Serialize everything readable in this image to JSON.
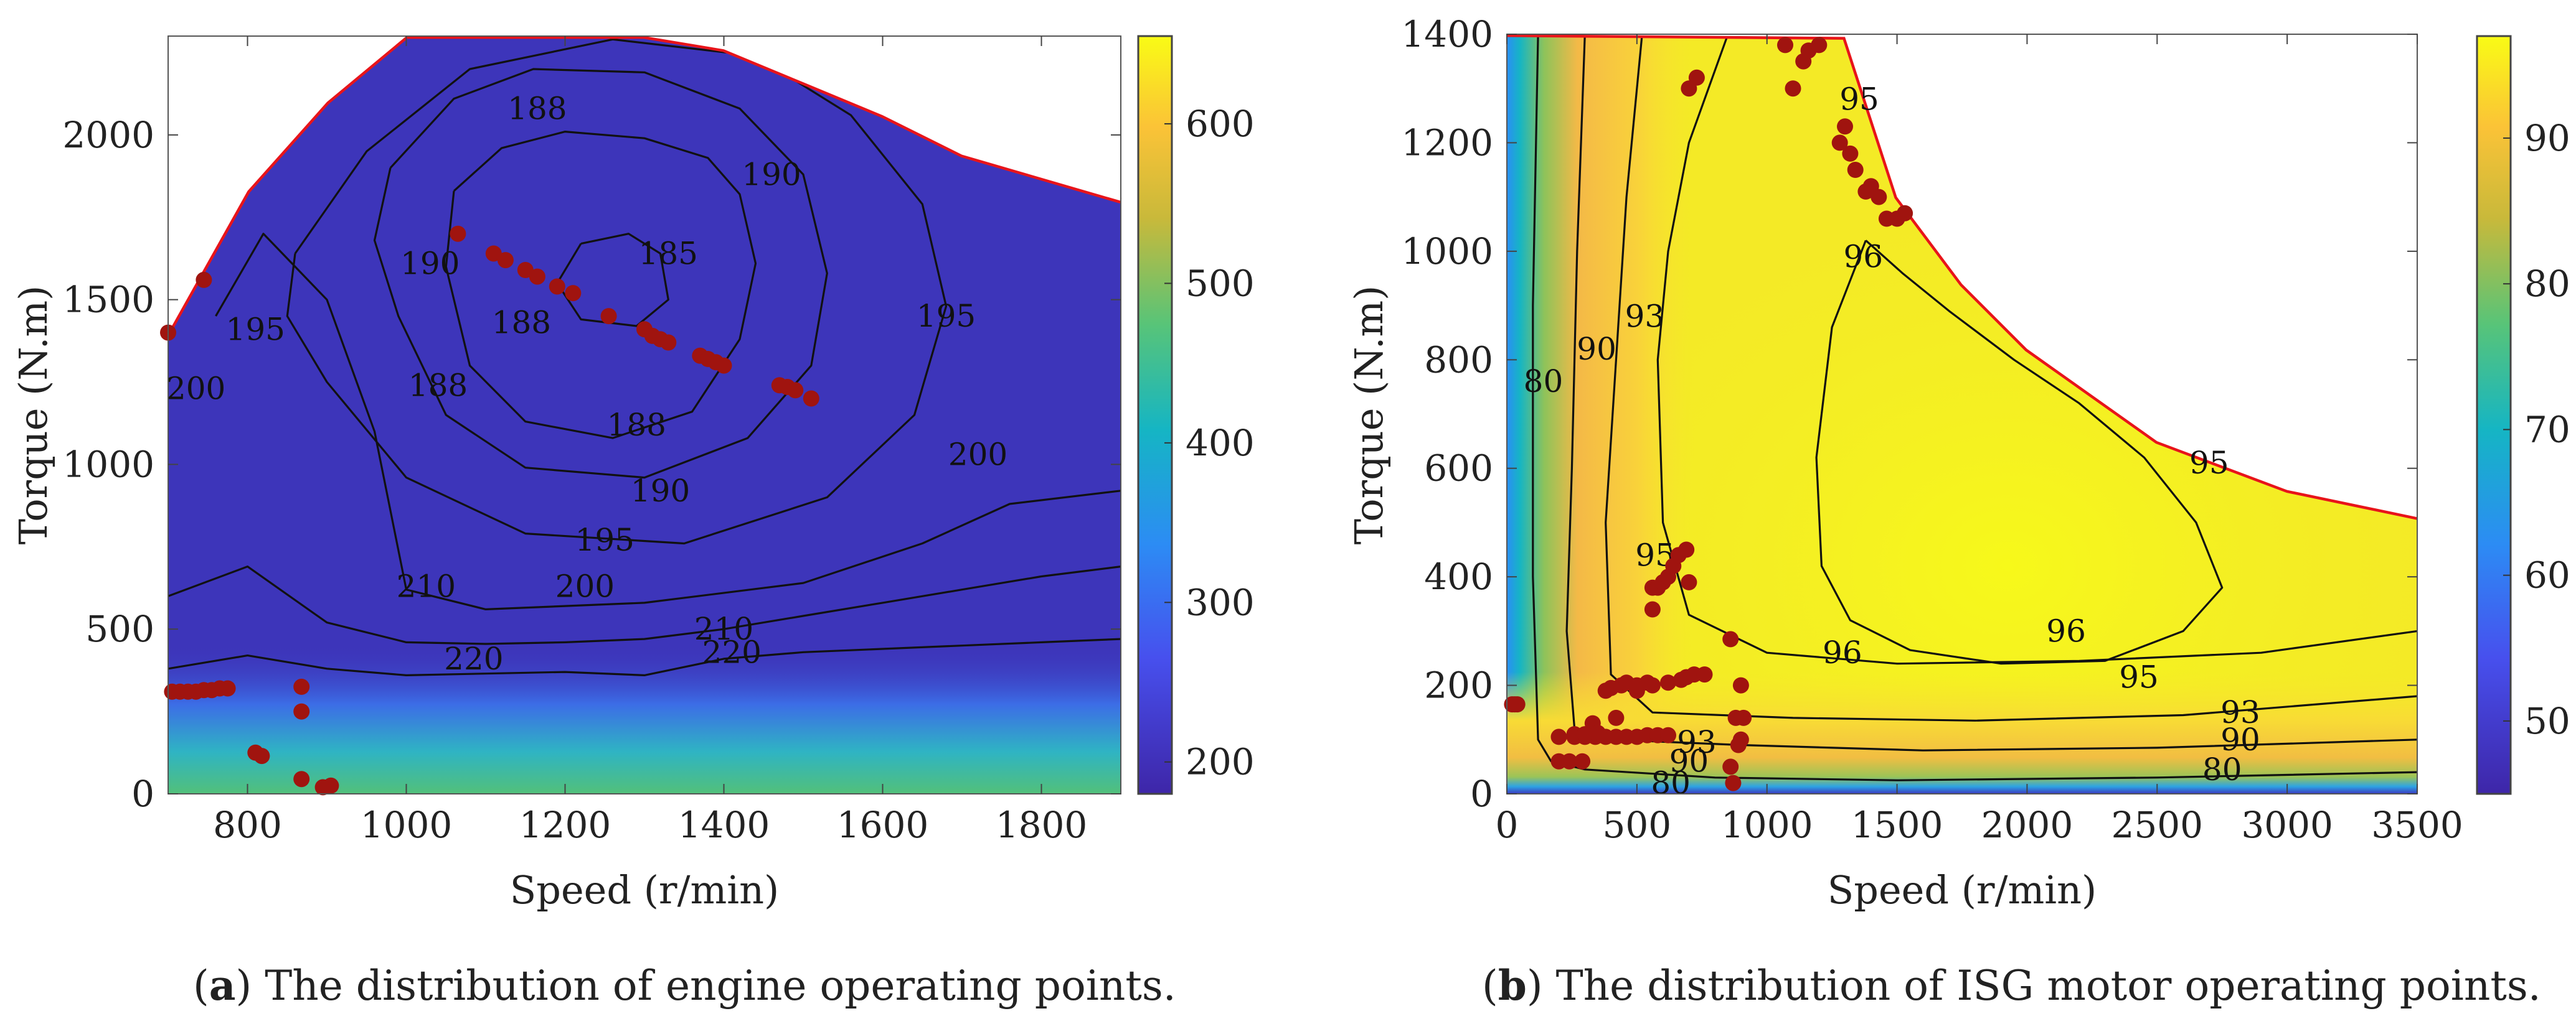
{
  "chart_data": [
    {
      "type": "heatmap",
      "subtype": "engine BSFC contour map with operating points",
      "xlabel": "Speed (r/min)",
      "ylabel": "Torque (N.m)",
      "xlim": [
        700,
        1900
      ],
      "ylim": [
        0,
        2300
      ],
      "xticks": [
        800,
        1000,
        1200,
        1400,
        1600,
        1800
      ],
      "yticks": [
        0,
        500,
        1000,
        1500,
        2000
      ],
      "colorbar": {
        "range": [
          180,
          655
        ],
        "ticks": [
          200,
          300,
          400,
          500,
          600
        ],
        "colormap": "parula"
      },
      "boundary": {
        "color": "#e8141a",
        "x": [
          700,
          800,
          900,
          1000,
          1300,
          1400,
          1600,
          1700,
          1900
        ],
        "y": [
          1400,
          1830,
          2100,
          2300,
          2300,
          2260,
          2060,
          1940,
          1800
        ]
      },
      "contours": [
        {
          "label": "185",
          "x": [
            1220,
            1280,
            1320,
            1330,
            1290,
            1220,
            1190,
            1220
          ],
          "y": [
            1670,
            1700,
            1640,
            1500,
            1420,
            1440,
            1550,
            1670
          ]
        },
        {
          "label": "188",
          "x": [
            1060,
            1120,
            1200,
            1300,
            1380,
            1420,
            1440,
            1420,
            1360,
            1260,
            1150,
            1080,
            1050,
            1060
          ],
          "y": [
            1830,
            1960,
            2010,
            1990,
            1930,
            1820,
            1610,
            1380,
            1160,
            1080,
            1130,
            1300,
            1600,
            1830
          ]
        },
        {
          "label": "190",
          "x": [
            980,
            1060,
            1160,
            1300,
            1420,
            1500,
            1530,
            1510,
            1430,
            1300,
            1150,
            1050,
            990,
            960,
            980
          ],
          "y": [
            1900,
            2110,
            2200,
            2190,
            2080,
            1880,
            1580,
            1300,
            1080,
            960,
            990,
            1150,
            1450,
            1680,
            1900
          ]
        },
        {
          "label": "195",
          "x": [
            860,
            950,
            1080,
            1260,
            1440,
            1560,
            1650,
            1680,
            1640,
            1530,
            1350,
            1150,
            1000,
            900,
            850,
            860
          ],
          "y": [
            1640,
            1950,
            2200,
            2290,
            2240,
            2060,
            1790,
            1480,
            1150,
            900,
            760,
            790,
            960,
            1250,
            1450,
            1640
          ]
        },
        {
          "label": "200",
          "x": [
            760,
            820,
            900,
            960,
            1000,
            1100,
            1300,
            1500,
            1650,
            1760,
            1900
          ],
          "y": [
            1450,
            1700,
            1500,
            1100,
            620,
            560,
            580,
            640,
            760,
            880,
            920
          ]
        },
        {
          "label": "210",
          "x": [
            700,
            800,
            900,
            1000,
            1100,
            1200,
            1300,
            1400,
            1500,
            1600,
            1700,
            1800,
            1900
          ],
          "y": [
            600,
            690,
            520,
            460,
            455,
            460,
            470,
            500,
            540,
            580,
            620,
            660,
            690
          ]
        },
        {
          "label": "220",
          "x": [
            700,
            800,
            900,
            1000,
            1100,
            1200,
            1300,
            1400,
            1500,
            1600,
            1700,
            1800,
            1900
          ],
          "y": [
            380,
            420,
            380,
            360,
            365,
            370,
            360,
            410,
            430,
            440,
            450,
            460,
            470
          ]
        }
      ],
      "contour_labels": [
        {
          "text": "188",
          "x": 1165,
          "y": 2080
        },
        {
          "text": "190",
          "x": 1460,
          "y": 1880
        },
        {
          "text": "185",
          "x": 1330,
          "y": 1640
        },
        {
          "text": "188",
          "x": 1145,
          "y": 1430
        },
        {
          "text": "188",
          "x": 1290,
          "y": 1120
        },
        {
          "text": "190",
          "x": 1320,
          "y": 920
        },
        {
          "text": "195",
          "x": 1250,
          "y": 770
        },
        {
          "text": "200",
          "x": 1225,
          "y": 630
        },
        {
          "text": "190",
          "x": 1030,
          "y": 1610
        },
        {
          "text": "188",
          "x": 1040,
          "y": 1240
        },
        {
          "text": "195",
          "x": 810,
          "y": 1410
        },
        {
          "text": "200",
          "x": 735,
          "y": 1230
        },
        {
          "text": "195",
          "x": 1680,
          "y": 1450
        },
        {
          "text": "200",
          "x": 1720,
          "y": 1030
        },
        {
          "text": "210",
          "x": 1025,
          "y": 630
        },
        {
          "text": "220",
          "x": 1085,
          "y": 410
        },
        {
          "text": "210",
          "x": 1400,
          "y": 500
        },
        {
          "text": "220",
          "x": 1410,
          "y": 430
        }
      ],
      "points": {
        "color": "#a0140f",
        "x": [
          700,
          745,
          705,
          715,
          725,
          735,
          745,
          755,
          765,
          775,
          810,
          818,
          868,
          868,
          868,
          895,
          905,
          1065,
          1110,
          1125,
          1150,
          1165,
          1190,
          1210,
          1255,
          1300,
          1310,
          1320,
          1330,
          1370,
          1380,
          1390,
          1400,
          1470,
          1480,
          1490,
          1510
        ],
        "y": [
          1400,
          1560,
          310,
          310,
          310,
          310,
          315,
          315,
          320,
          320,
          125,
          115,
          325,
          250,
          45,
          20,
          25,
          1700,
          1640,
          1620,
          1590,
          1570,
          1540,
          1520,
          1450,
          1410,
          1390,
          1380,
          1370,
          1330,
          1320,
          1310,
          1300,
          1240,
          1235,
          1225,
          1200
        ]
      },
      "caption_letter": "a",
      "caption_text": " The distribution of engine operating points."
    },
    {
      "type": "heatmap",
      "subtype": "ISG motor efficiency contour map with operating points",
      "xlabel": "Speed (r/min)",
      "ylabel": "Torque (N.m)",
      "xlim": [
        0,
        3500
      ],
      "ylim": [
        0,
        1400
      ],
      "xticks": [
        0,
        500,
        1000,
        1500,
        2000,
        2500,
        3000,
        3500
      ],
      "yticks": [
        0,
        200,
        400,
        600,
        800,
        1000,
        1200,
        1400
      ],
      "colorbar": {
        "range": [
          45,
          97
        ],
        "ticks": [
          50,
          60,
          70,
          80,
          90
        ],
        "colormap": "parula"
      },
      "boundary": {
        "color": "#e8141a",
        "x": [
          0,
          1300,
          1500,
          1750,
          2000,
          2500,
          3000,
          3500
        ],
        "y": [
          1400,
          1395,
          1100,
          940,
          820,
          650,
          560,
          510
        ]
      },
      "contours": [
        {
          "label": "80",
          "x": [
            120,
            100,
            100,
            120,
            170,
            300,
            800,
            1500,
            2500,
            3500
          ],
          "y": [
            1400,
            900,
            400,
            100,
            60,
            45,
            30,
            25,
            30,
            40
          ]
        },
        {
          "label": "90",
          "x": [
            300,
            270,
            250,
            230,
            260,
            400,
            900,
            1600,
            2500,
            3500
          ],
          "y": [
            1400,
            1000,
            600,
            300,
            120,
            100,
            90,
            80,
            85,
            100
          ]
        },
        {
          "label": "93",
          "x": [
            520,
            460,
            420,
            380,
            400,
            560,
            1100,
            1800,
            2600,
            3500
          ],
          "y": [
            1400,
            1100,
            800,
            500,
            220,
            150,
            140,
            135,
            145,
            180
          ]
        },
        {
          "label": "95",
          "x": [
            850,
            700,
            620,
            580,
            600,
            700,
            1000,
            1500,
            2200,
            2900,
            3500
          ],
          "y": [
            1400,
            1200,
            1000,
            800,
            500,
            330,
            260,
            240,
            245,
            260,
            300
          ]
        },
        {
          "label": "96",
          "x": [
            1380,
            1520,
            1700,
            1950,
            2200,
            2450,
            2650,
            2750,
            2600,
            2300,
            1900,
            1550,
            1320,
            1210,
            1190,
            1250,
            1380
          ],
          "y": [
            1020,
            960,
            890,
            800,
            720,
            620,
            500,
            380,
            300,
            245,
            240,
            265,
            320,
            420,
            620,
            860,
            1020
          ]
        }
      ],
      "contour_labels": [
        {
          "text": "95",
          "x": 1355,
          "y": 1280
        },
        {
          "text": "96",
          "x": 1370,
          "y": 990
        },
        {
          "text": "93",
          "x": 530,
          "y": 880
        },
        {
          "text": "90",
          "x": 345,
          "y": 820
        },
        {
          "text": "80",
          "x": 140,
          "y": 760
        },
        {
          "text": "95",
          "x": 2700,
          "y": 610
        },
        {
          "text": "95",
          "x": 570,
          "y": 440
        },
        {
          "text": "96",
          "x": 2150,
          "y": 300
        },
        {
          "text": "96",
          "x": 1290,
          "y": 260
        },
        {
          "text": "95",
          "x": 2430,
          "y": 215
        },
        {
          "text": "93",
          "x": 2820,
          "y": 150
        },
        {
          "text": "90",
          "x": 2820,
          "y": 100
        },
        {
          "text": "80",
          "x": 2750,
          "y": 45
        },
        {
          "text": "93",
          "x": 730,
          "y": 95
        },
        {
          "text": "90",
          "x": 700,
          "y": 60
        },
        {
          "text": "80",
          "x": 630,
          "y": 20
        }
      ],
      "points": {
        "color": "#a0140f",
        "x": [
          20,
          30,
          40,
          730,
          700,
          1070,
          1100,
          1140,
          1160,
          1200,
          1280,
          1300,
          1320,
          1340,
          1380,
          1400,
          1430,
          1460,
          1500,
          1530,
          260,
          300,
          340,
          380,
          420,
          460,
          500,
          540,
          580,
          620,
          200,
          240,
          290,
          330,
          420,
          500,
          560,
          620,
          670,
          690,
          720,
          760,
          200,
          260,
          300,
          350,
          380,
          400,
          440,
          460,
          500,
          540,
          560,
          580,
          600,
          620,
          640,
          660,
          690,
          700,
          900,
          910,
          900,
          890,
          870,
          560,
          860,
          880,
          860
        ],
        "y": [
          165,
          165,
          165,
          1320,
          1300,
          1380,
          1300,
          1350,
          1370,
          1380,
          1200,
          1230,
          1180,
          1150,
          1110,
          1120,
          1100,
          1060,
          1060,
          1070,
          105,
          105,
          105,
          105,
          105,
          105,
          105,
          108,
          108,
          108,
          60,
          60,
          60,
          130,
          140,
          190,
          200,
          205,
          210,
          215,
          220,
          220,
          105,
          110,
          110,
          112,
          190,
          195,
          200,
          205,
          200,
          205,
          380,
          380,
          390,
          400,
          420,
          440,
          450,
          390,
          200,
          140,
          100,
          90,
          20,
          340,
          285,
          140,
          50
        ]
      },
      "caption_letter": "b",
      "caption_text": " The distribution of ISG motor operating points."
    }
  ]
}
